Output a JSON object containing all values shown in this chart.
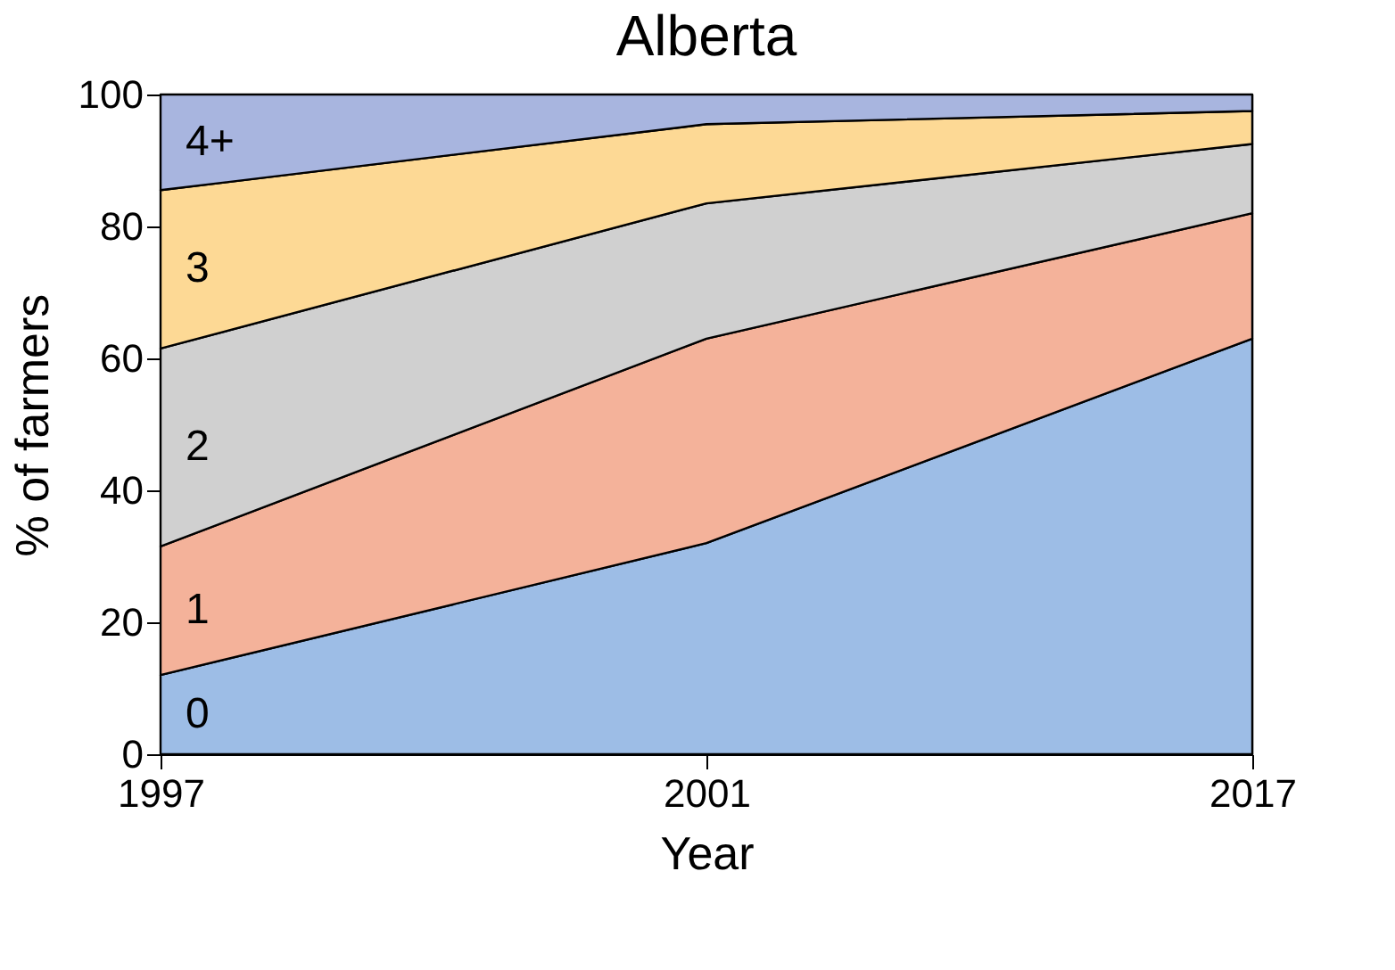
{
  "chart_data": {
    "type": "area",
    "title": "Alberta",
    "xlabel": "Year",
    "ylabel": "% of farmers",
    "categories": [
      "1997",
      "2001",
      "2017"
    ],
    "stacked": true,
    "series": [
      {
        "name": "0",
        "color": "#9dbde6",
        "values": [
          12,
          32,
          63
        ]
      },
      {
        "name": "1",
        "color": "#f4b29a",
        "values": [
          19.5,
          31,
          19
        ]
      },
      {
        "name": "2",
        "color": "#d0d0d0",
        "values": [
          30,
          20.5,
          10.5
        ]
      },
      {
        "name": "3",
        "color": "#fdd995",
        "values": [
          24,
          12,
          5
        ]
      },
      {
        "name": "4+",
        "color": "#a8b5df",
        "values": [
          14.5,
          4.5,
          2.5
        ]
      }
    ],
    "ylim": [
      0,
      100
    ],
    "yticks": [
      0,
      20,
      40,
      60,
      80,
      100
    ],
    "legend": false
  }
}
